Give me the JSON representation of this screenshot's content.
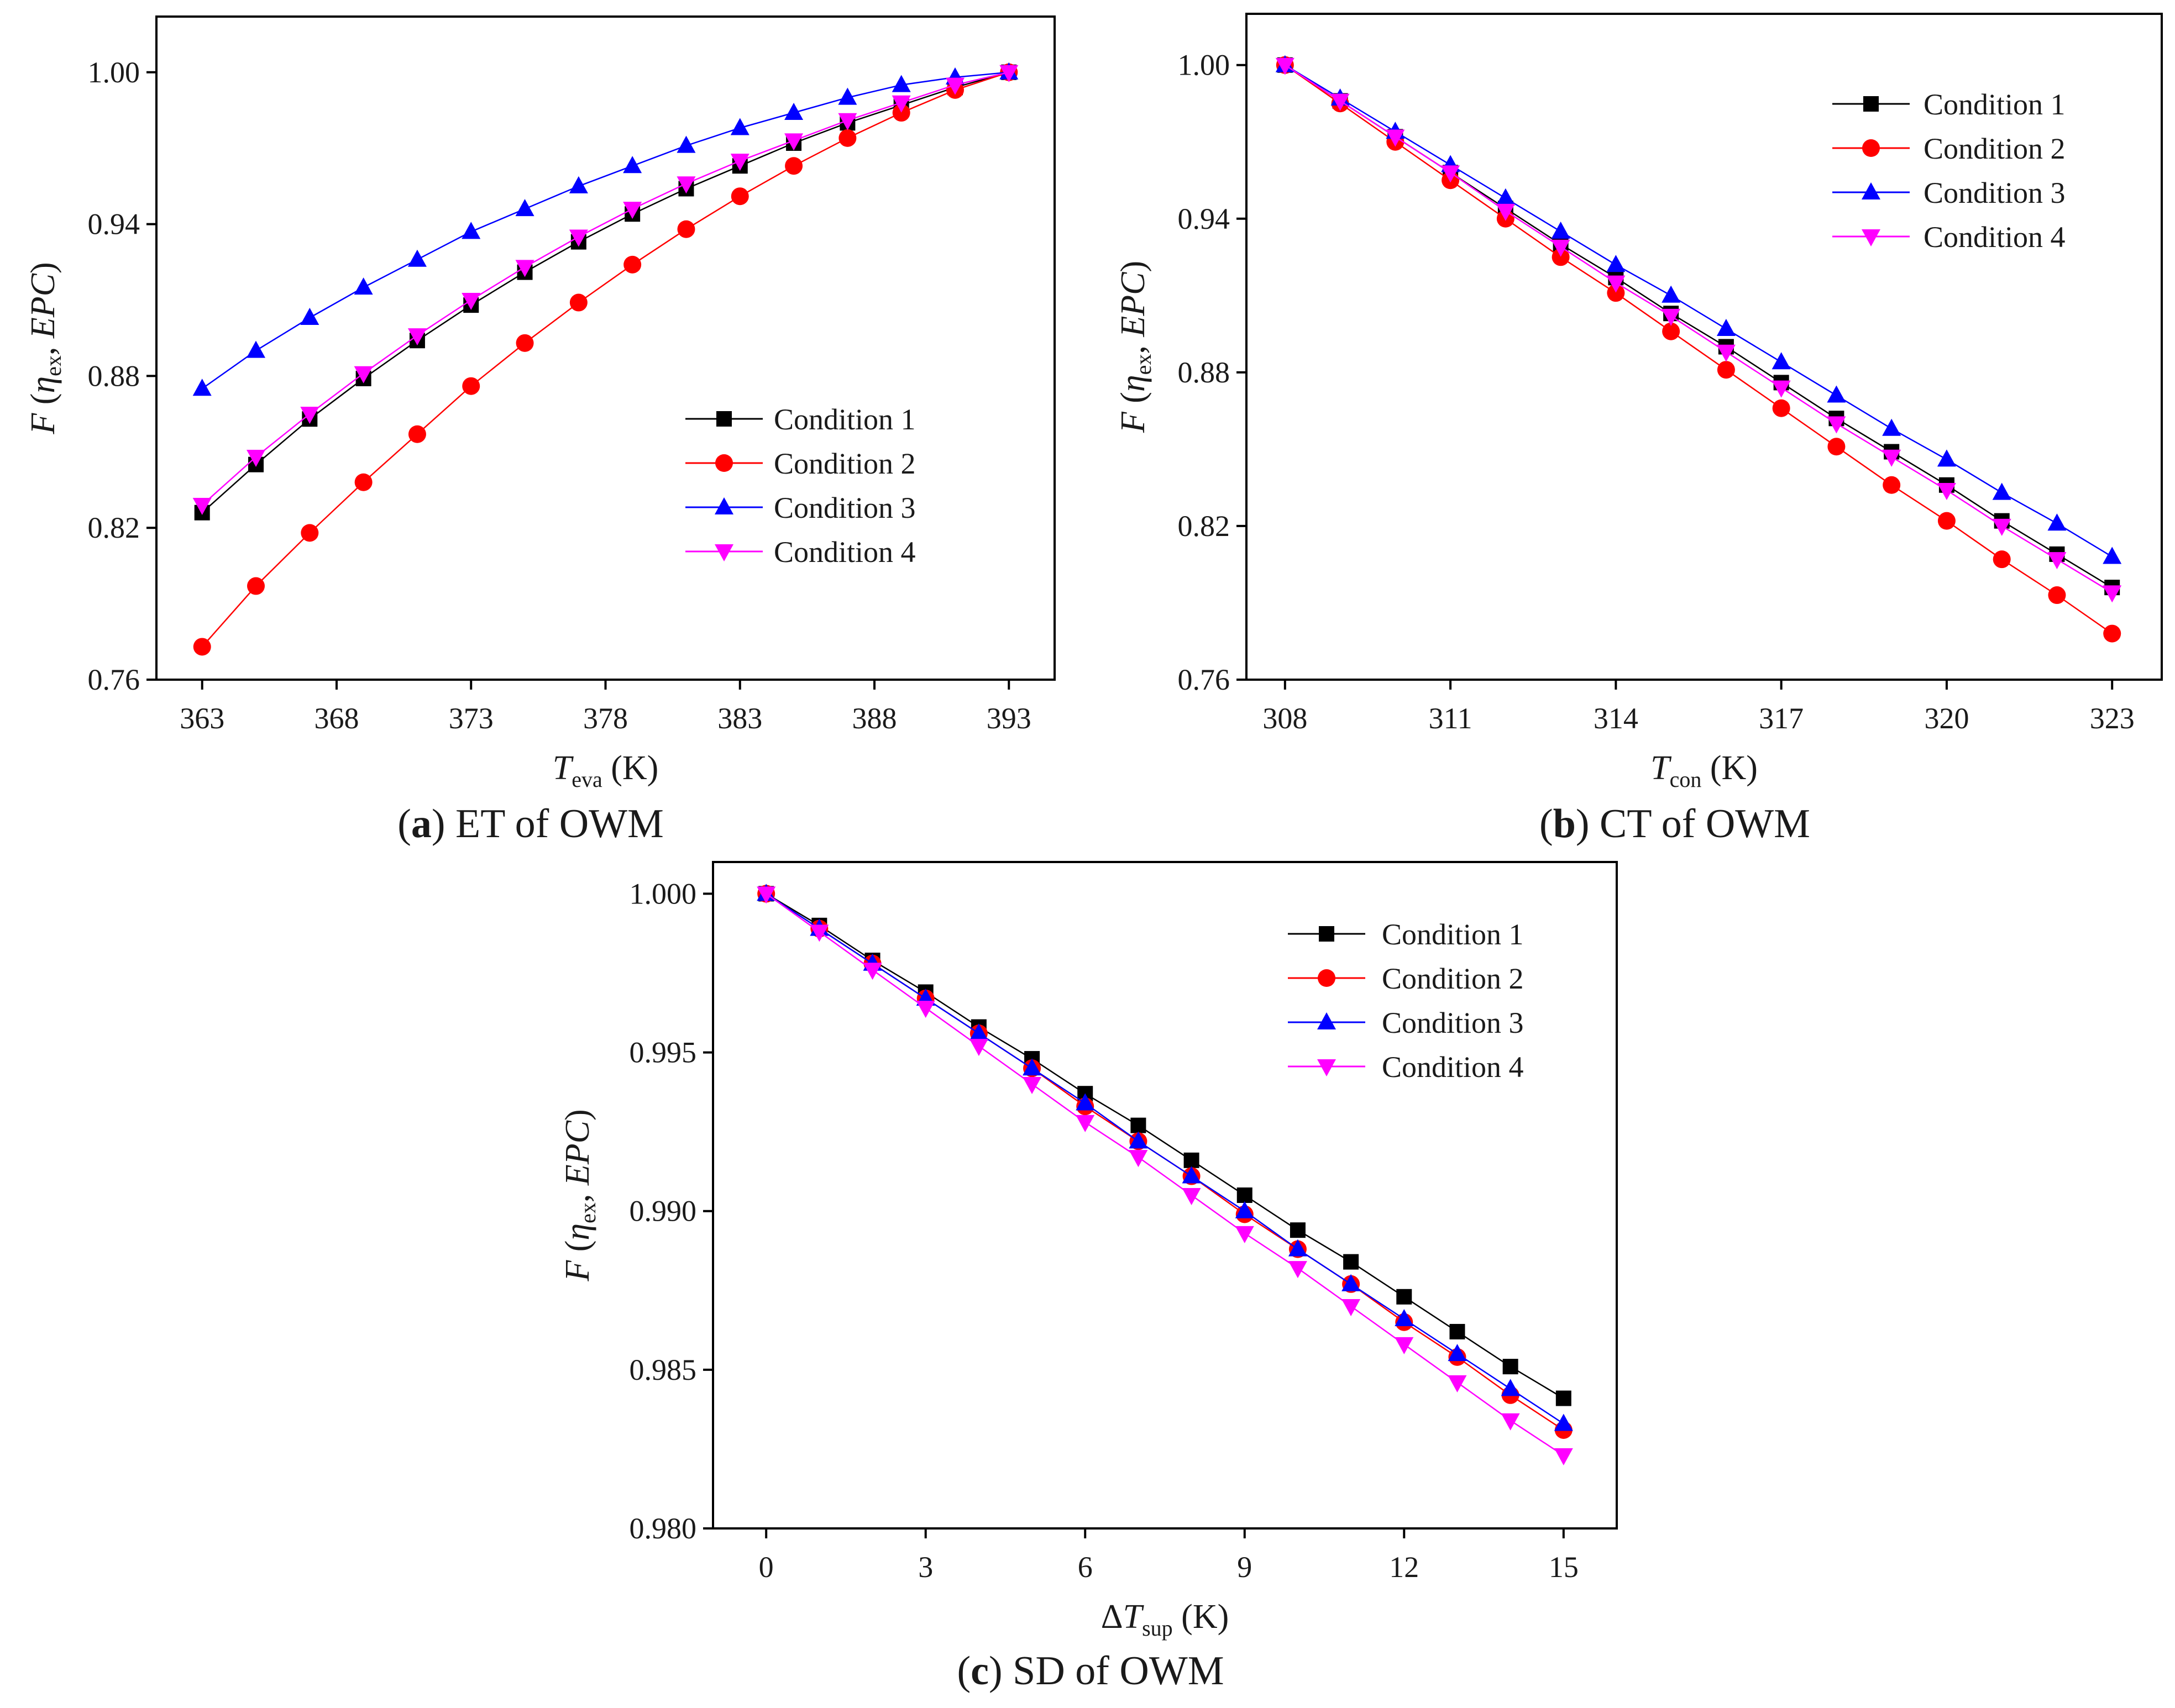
{
  "colors": {
    "condition_1": "#000000",
    "condition_2": "#ff0000",
    "condition_3": "#0000ff",
    "condition_4": "#ff00ff"
  },
  "legend_labels": [
    "Condition 1",
    "Condition 2",
    "Condition 3",
    "Condition 4"
  ],
  "marker_names": [
    "square",
    "circle",
    "triangle-up",
    "triangle-down"
  ],
  "chart_data": [
    {
      "id": "a",
      "type": "line",
      "caption_letter": "a",
      "caption_text": "ET of OWM",
      "ylabel": "F (ηex, EPC)",
      "xlabel": "Teva (K)",
      "xlabel_var": "T",
      "xlabel_sub": "eva",
      "xlabel_unit": "(K)",
      "xlim": [
        361.3,
        394.7
      ],
      "ylim": [
        0.76,
        1.022
      ],
      "xticks": [
        363,
        368,
        373,
        378,
        383,
        388,
        393
      ],
      "xtick_labels": [
        "363",
        "368",
        "373",
        "378",
        "383",
        "388",
        "393"
      ],
      "yticks": [
        0.76,
        0.82,
        0.88,
        0.94,
        1.0
      ],
      "ytick_labels": [
        "0.76",
        "0.82",
        "0.88",
        "0.94",
        "1.00"
      ],
      "legend_position": "center-right",
      "x": [
        363,
        365,
        367,
        369,
        371,
        373,
        375,
        377,
        379,
        381,
        383,
        385,
        387,
        389,
        391,
        393
      ],
      "series": [
        {
          "name": "Condition 1",
          "values": [
            0.826,
            0.845,
            0.863,
            0.879,
            0.894,
            0.908,
            0.921,
            0.933,
            0.944,
            0.954,
            0.963,
            0.972,
            0.98,
            0.987,
            0.994,
            1.0
          ]
        },
        {
          "name": "Condition 2",
          "values": [
            0.773,
            0.797,
            0.818,
            0.838,
            0.857,
            0.876,
            0.893,
            0.909,
            0.924,
            0.938,
            0.951,
            0.963,
            0.974,
            0.984,
            0.993,
            1.0
          ]
        },
        {
          "name": "Condition 3",
          "values": [
            0.875,
            0.89,
            0.903,
            0.915,
            0.926,
            0.937,
            0.946,
            0.955,
            0.963,
            0.971,
            0.978,
            0.984,
            0.99,
            0.995,
            0.998,
            1.0
          ]
        },
        {
          "name": "Condition 4",
          "values": [
            0.829,
            0.848,
            0.865,
            0.881,
            0.896,
            0.91,
            0.923,
            0.935,
            0.946,
            0.956,
            0.965,
            0.973,
            0.981,
            0.988,
            0.995,
            1.0
          ]
        }
      ]
    },
    {
      "id": "b",
      "type": "line",
      "caption_letter": "b",
      "caption_text": "CT of OWM",
      "ylabel": "F (ηex, EPC)",
      "xlabel": "Tcon (K)",
      "xlabel_var": "T",
      "xlabel_sub": "con",
      "xlabel_unit": "(K)",
      "xlim": [
        307.3,
        323.9
      ],
      "ylim": [
        0.76,
        1.02
      ],
      "xticks": [
        308,
        311,
        314,
        317,
        320,
        323
      ],
      "xtick_labels": [
        "308",
        "311",
        "314",
        "317",
        "320",
        "323"
      ],
      "yticks": [
        0.76,
        0.82,
        0.88,
        0.94,
        1.0
      ],
      "ytick_labels": [
        "0.76",
        "0.82",
        "0.88",
        "0.94",
        "1.00"
      ],
      "legend_position": "top-right",
      "x": [
        308,
        309,
        310,
        311,
        312,
        313,
        314,
        315,
        316,
        317,
        318,
        319,
        320,
        321,
        322,
        323
      ],
      "series": [
        {
          "name": "Condition 1",
          "values": [
            1.0,
            0.986,
            0.972,
            0.958,
            0.944,
            0.93,
            0.917,
            0.903,
            0.89,
            0.876,
            0.862,
            0.849,
            0.836,
            0.822,
            0.809,
            0.796
          ]
        },
        {
          "name": "Condition 2",
          "values": [
            1.0,
            0.985,
            0.97,
            0.955,
            0.94,
            0.925,
            0.911,
            0.896,
            0.881,
            0.866,
            0.851,
            0.836,
            0.822,
            0.807,
            0.793,
            0.778
          ]
        },
        {
          "name": "Condition 3",
          "values": [
            1.0,
            0.987,
            0.974,
            0.961,
            0.948,
            0.935,
            0.922,
            0.91,
            0.897,
            0.884,
            0.871,
            0.858,
            0.846,
            0.833,
            0.821,
            0.808
          ]
        },
        {
          "name": "Condition 4",
          "values": [
            1.0,
            0.986,
            0.972,
            0.958,
            0.943,
            0.929,
            0.915,
            0.902,
            0.888,
            0.874,
            0.86,
            0.847,
            0.834,
            0.82,
            0.807,
            0.794
          ]
        }
      ]
    },
    {
      "id": "c",
      "type": "line",
      "caption_letter": "c",
      "caption_text": "SD of OWM",
      "ylabel": "F (ηex, EPC)",
      "xlabel": "ΔTsup (K)",
      "xlabel_var": "ΔT",
      "xlabel_sub": "sup",
      "xlabel_unit": "(K)",
      "xlim": [
        -1.0,
        16.0
      ],
      "ylim": [
        0.98,
        1.001
      ],
      "xticks": [
        0,
        3,
        6,
        9,
        12,
        15
      ],
      "xtick_labels": [
        "0",
        "3",
        "6",
        "9",
        "12",
        "15"
      ],
      "yticks": [
        0.98,
        0.985,
        0.99,
        0.995,
        1.0
      ],
      "ytick_labels": [
        "0.980",
        "0.985",
        "0.990",
        "0.995",
        "1.000"
      ],
      "legend_position": "top-right",
      "x": [
        0,
        1,
        2,
        3,
        4,
        5,
        6,
        7,
        8,
        9,
        10,
        11,
        12,
        13,
        14,
        15
      ],
      "series": [
        {
          "name": "Condition 1",
          "values": [
            1.0,
            0.999,
            0.9979,
            0.9969,
            0.9958,
            0.9948,
            0.9937,
            0.9927,
            0.9916,
            0.9905,
            0.9894,
            0.9884,
            0.9873,
            0.9862,
            0.9851,
            0.9841
          ]
        },
        {
          "name": "Condition 2",
          "values": [
            1.0,
            0.9989,
            0.9978,
            0.9967,
            0.9956,
            0.9945,
            0.9933,
            0.9922,
            0.9911,
            0.9899,
            0.9888,
            0.9877,
            0.9865,
            0.9854,
            0.9842,
            0.9831
          ]
        },
        {
          "name": "Condition 3",
          "values": [
            1.0,
            0.9989,
            0.9978,
            0.9967,
            0.9956,
            0.9945,
            0.9934,
            0.9922,
            0.9911,
            0.99,
            0.9888,
            0.9877,
            0.9866,
            0.9855,
            0.9844,
            0.9833
          ]
        },
        {
          "name": "Condition 4",
          "values": [
            1.0,
            0.9988,
            0.9976,
            0.9964,
            0.9952,
            0.994,
            0.9928,
            0.9917,
            0.9905,
            0.9893,
            0.9882,
            0.987,
            0.9858,
            0.9846,
            0.9834,
            0.9823
          ]
        }
      ]
    }
  ]
}
